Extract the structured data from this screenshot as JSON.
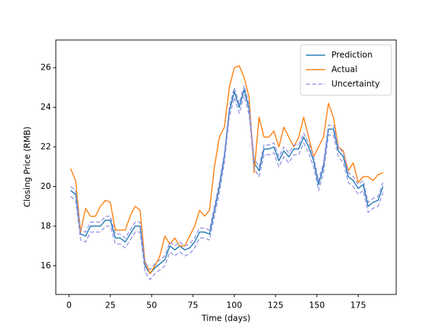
{
  "chart_data": {
    "type": "line",
    "xlabel": "Time (days)",
    "ylabel": "Closing Price (RMB)",
    "x": [
      1,
      4,
      7,
      10,
      13,
      16,
      19,
      22,
      25,
      28,
      31,
      34,
      37,
      40,
      43,
      46,
      49,
      52,
      55,
      58,
      61,
      64,
      67,
      70,
      73,
      76,
      79,
      82,
      85,
      88,
      91,
      94,
      97,
      100,
      103,
      106,
      109,
      112,
      115,
      118,
      121,
      124,
      127,
      130,
      133,
      136,
      139,
      142,
      145,
      148,
      151,
      154,
      157,
      160,
      163,
      166,
      169,
      172,
      175,
      178,
      181,
      184,
      187,
      190
    ],
    "series": [
      {
        "name": "Prediction",
        "color": "#1f77b4",
        "values": [
          19.8,
          19.6,
          17.6,
          17.5,
          18.0,
          18.0,
          18.0,
          18.3,
          18.3,
          17.4,
          17.4,
          17.2,
          17.6,
          18.0,
          18.0,
          16.0,
          15.6,
          15.9,
          16.1,
          16.3,
          17.0,
          16.8,
          17.0,
          16.8,
          16.9,
          17.2,
          17.7,
          17.7,
          17.6,
          18.8,
          20.0,
          21.5,
          23.8,
          24.8,
          24.0,
          24.9,
          23.9,
          21.2,
          20.8,
          21.9,
          21.9,
          22.0,
          21.3,
          21.8,
          21.5,
          21.9,
          21.9,
          22.5,
          22.0,
          21.3,
          20.1,
          21.0,
          22.9,
          22.9,
          21.8,
          21.5,
          20.5,
          20.3,
          19.9,
          20.1,
          19.0,
          19.2,
          19.3,
          20.0
        ]
      },
      {
        "name": "Actual",
        "color": "#ff7f0e",
        "values": [
          20.9,
          20.3,
          17.7,
          18.9,
          18.5,
          18.5,
          19.0,
          19.3,
          19.2,
          17.8,
          17.8,
          17.8,
          18.5,
          19.0,
          18.8,
          16.2,
          15.6,
          16.0,
          16.5,
          17.5,
          17.1,
          17.4,
          17.0,
          17.0,
          17.5,
          18.0,
          18.8,
          18.5,
          18.8,
          21.0,
          22.5,
          23.0,
          25.0,
          26.0,
          26.1,
          25.5,
          24.5,
          20.7,
          23.5,
          22.5,
          22.5,
          22.8,
          22.0,
          23.0,
          22.5,
          22.0,
          22.5,
          23.5,
          22.5,
          21.5,
          22.0,
          22.5,
          24.2,
          23.5,
          22.0,
          21.8,
          20.8,
          21.2,
          20.2,
          20.5,
          20.5,
          20.3,
          20.6,
          20.7
        ]
      },
      {
        "name": "Uncertainty",
        "color": "#9999e6",
        "dashed": true,
        "upper": [
          20.0,
          19.8,
          17.8,
          17.7,
          18.2,
          18.2,
          18.2,
          18.5,
          18.5,
          17.6,
          17.6,
          17.4,
          17.8,
          18.2,
          18.2,
          16.2,
          15.8,
          16.1,
          16.3,
          16.5,
          17.2,
          17.0,
          17.2,
          17.0,
          17.1,
          17.4,
          17.9,
          17.9,
          17.8,
          19.0,
          20.2,
          21.7,
          24.0,
          25.0,
          24.2,
          25.1,
          24.1,
          21.4,
          21.0,
          22.1,
          22.1,
          22.2,
          21.5,
          22.0,
          21.7,
          22.1,
          22.1,
          22.7,
          22.2,
          21.5,
          20.3,
          21.2,
          23.1,
          23.1,
          22.0,
          21.7,
          20.7,
          20.5,
          20.1,
          20.3,
          19.2,
          19.4,
          19.5,
          20.2
        ],
        "lower": [
          19.5,
          19.3,
          17.3,
          17.2,
          17.7,
          17.7,
          17.7,
          18.0,
          18.0,
          17.1,
          17.1,
          16.9,
          17.3,
          17.7,
          17.7,
          15.7,
          15.3,
          15.6,
          15.8,
          16.0,
          16.7,
          16.5,
          16.7,
          16.5,
          16.6,
          16.9,
          17.4,
          17.4,
          17.3,
          18.5,
          19.7,
          21.2,
          23.5,
          24.5,
          23.7,
          24.6,
          23.6,
          20.9,
          20.5,
          21.6,
          21.6,
          21.7,
          21.0,
          21.5,
          21.2,
          21.6,
          21.6,
          22.2,
          21.7,
          21.0,
          19.8,
          20.7,
          22.6,
          22.6,
          21.5,
          21.2,
          20.2,
          20.0,
          19.6,
          19.8,
          18.7,
          18.9,
          19.0,
          19.7
        ]
      }
    ],
    "xlim": [
      -8,
      198
    ],
    "xticks": [
      0,
      25,
      50,
      75,
      100,
      125,
      150,
      175
    ],
    "ylim": [
      14.55,
      27.4
    ],
    "yticks": [
      16,
      18,
      20,
      22,
      24,
      26
    ],
    "grid": false,
    "legend": "upper right"
  }
}
